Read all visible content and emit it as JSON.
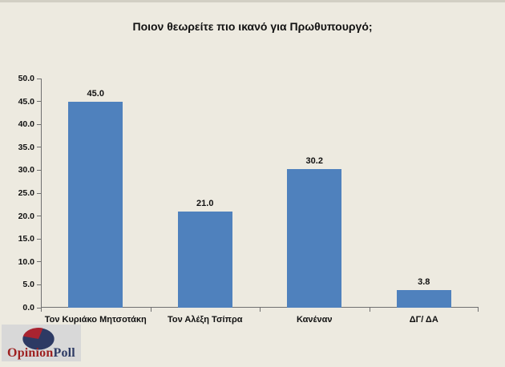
{
  "title": "Ποιον θεωρείτε πιο ικανό για Πρωθυπουργό;",
  "chart_data": {
    "type": "bar",
    "title": "Ποιον θεωρείτε πιο ικανό για Πρωθυπουργό;",
    "categories": [
      "Τον Κυριάκο Μητσοτάκη",
      "Τον Αλέξη Τσίπρα",
      "Κανέναν",
      "ΔΓ/ ΔΑ"
    ],
    "values": [
      45.0,
      21.0,
      30.2,
      3.8
    ],
    "data_labels": [
      "45.0",
      "21.0",
      "30.2",
      "3.8"
    ],
    "xlabel": "",
    "ylabel": "",
    "ylim": [
      0,
      50
    ],
    "ytick_step": 5,
    "ytick_labels": [
      "0.0",
      "5.0",
      "10.0",
      "15.0",
      "20.0",
      "25.0",
      "30.0",
      "35.0",
      "40.0",
      "45.0",
      "50.0"
    ],
    "grid": false,
    "legend": null,
    "bar_color": "#4f81bd"
  },
  "colors": {
    "background": "#edeae0",
    "axis": "#707070",
    "text": "#111111"
  },
  "logo": {
    "opinion_text": "Opinion",
    "poll_text": "Poll",
    "opinion_color": "#9e2121",
    "poll_color": "#2d3a64",
    "pie_base_color": "#2d3a64",
    "pie_slice_color": "#a92430",
    "box_color": "#d8d8d8"
  }
}
